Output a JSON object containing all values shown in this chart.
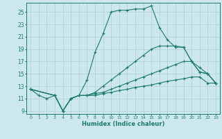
{
  "xlabel": "Humidex (Indice chaleur)",
  "bg_color": "#cde8ec",
  "grid_color": "#aed0d6",
  "line_color": "#1a7a6e",
  "tick_color": "#1a7a6e",
  "xlim": [
    -0.5,
    23.5
  ],
  "ylim": [
    8.5,
    26.5
  ],
  "yticks": [
    9,
    11,
    13,
    15,
    17,
    19,
    21,
    23,
    25
  ],
  "xticks": [
    0,
    1,
    2,
    3,
    4,
    5,
    6,
    7,
    8,
    9,
    10,
    11,
    12,
    13,
    14,
    15,
    16,
    17,
    18,
    19,
    20,
    21,
    22,
    23
  ],
  "lines": [
    {
      "x": [
        0,
        1,
        2,
        3,
        4,
        5,
        6,
        7,
        8,
        9,
        10,
        11,
        12,
        13,
        14,
        15,
        16,
        17,
        18,
        19,
        20,
        21,
        22,
        23
      ],
      "y": [
        12.5,
        11.5,
        11.0,
        11.5,
        9.0,
        11.0,
        11.5,
        14.0,
        18.5,
        21.5,
        25.0,
        25.3,
        25.3,
        25.5,
        25.5,
        26.0,
        22.5,
        20.5,
        19.3,
        19.3,
        17.0,
        15.3,
        15.0,
        13.5
      ]
    },
    {
      "x": [
        0,
        3,
        4,
        5,
        6,
        7,
        8,
        9,
        10,
        11,
        12,
        13,
        14,
        15,
        16,
        17,
        18,
        19,
        20,
        21,
        22,
        23
      ],
      "y": [
        12.5,
        11.5,
        9.0,
        11.0,
        11.5,
        11.5,
        12.0,
        13.0,
        14.0,
        15.0,
        16.0,
        17.0,
        18.0,
        19.0,
        19.5,
        19.5,
        19.5,
        19.3,
        17.0,
        15.3,
        15.0,
        13.5
      ]
    },
    {
      "x": [
        0,
        3,
        4,
        5,
        6,
        7,
        8,
        9,
        10,
        11,
        12,
        13,
        14,
        15,
        16,
        17,
        18,
        19,
        20,
        21,
        22,
        23
      ],
      "y": [
        12.5,
        11.5,
        9.0,
        11.0,
        11.5,
        11.5,
        11.8,
        12.0,
        12.5,
        13.0,
        13.5,
        14.0,
        14.5,
        15.0,
        15.5,
        16.0,
        16.5,
        17.0,
        17.0,
        16.0,
        15.0,
        13.5
      ]
    },
    {
      "x": [
        0,
        3,
        4,
        5,
        6,
        7,
        8,
        9,
        10,
        11,
        12,
        13,
        14,
        15,
        16,
        17,
        18,
        19,
        20,
        21,
        22,
        23
      ],
      "y": [
        12.5,
        11.5,
        9.0,
        11.0,
        11.5,
        11.5,
        11.5,
        11.8,
        12.0,
        12.3,
        12.5,
        12.8,
        13.0,
        13.2,
        13.5,
        13.8,
        14.0,
        14.2,
        14.5,
        14.5,
        13.5,
        13.5
      ]
    }
  ]
}
